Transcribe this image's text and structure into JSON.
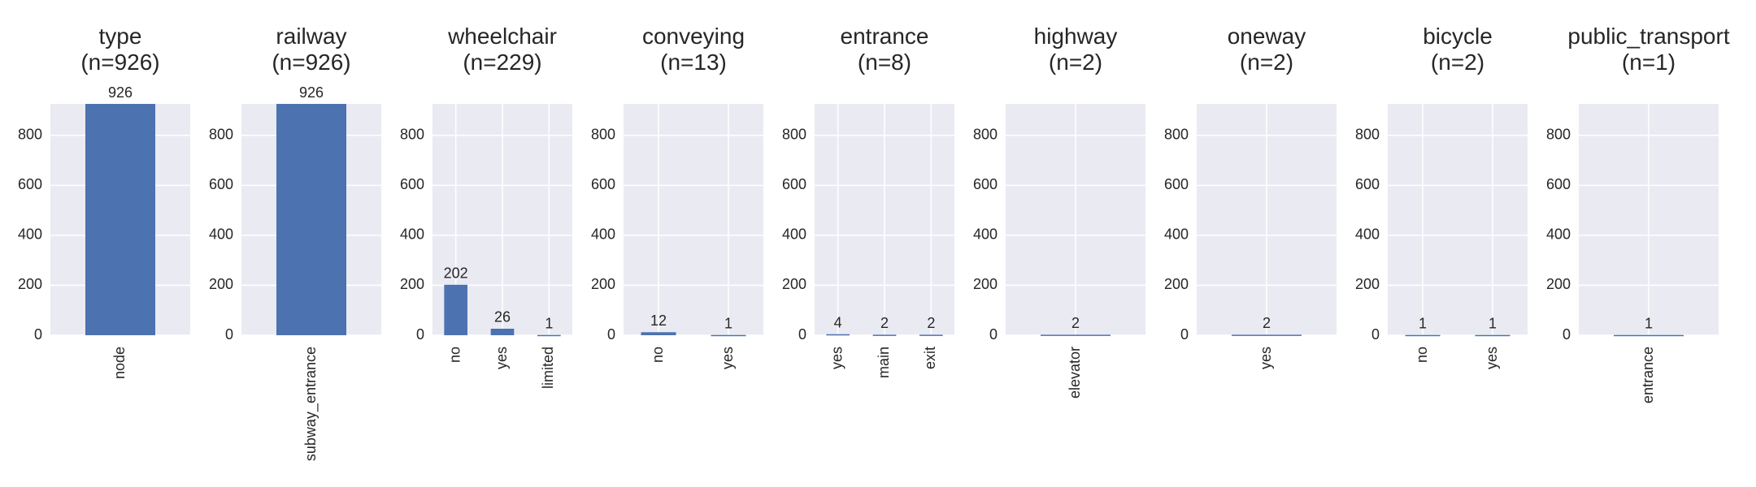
{
  "chart_data": [
    {
      "type": "bar",
      "title": "type\n(n=926)",
      "categories": [
        "node"
      ],
      "values": [
        926
      ],
      "color": "#4c72b0",
      "ylim": [
        0,
        926
      ],
      "yticks": [
        0,
        200,
        400,
        600,
        800
      ],
      "grid": true
    },
    {
      "type": "bar",
      "title": "railway\n(n=926)",
      "categories": [
        "subway_entrance"
      ],
      "values": [
        926
      ],
      "color": "#4c72b0",
      "ylim": [
        0,
        926
      ],
      "yticks": [
        0,
        200,
        400,
        600,
        800
      ],
      "grid": true
    },
    {
      "type": "bar",
      "title": "wheelchair\n(n=229)",
      "categories": [
        "no",
        "yes",
        "limited"
      ],
      "values": [
        202,
        26,
        1
      ],
      "color": "#4c72b0",
      "ylim": [
        0,
        926
      ],
      "yticks": [
        0,
        200,
        400,
        600,
        800
      ],
      "grid": true
    },
    {
      "type": "bar",
      "title": "conveying\n(n=13)",
      "categories": [
        "no",
        "yes"
      ],
      "values": [
        12,
        1
      ],
      "color": "#4c72b0",
      "ylim": [
        0,
        926
      ],
      "yticks": [
        0,
        200,
        400,
        600,
        800
      ],
      "grid": true
    },
    {
      "type": "bar",
      "title": "entrance\n(n=8)",
      "categories": [
        "yes",
        "main",
        "exit"
      ],
      "values": [
        4,
        2,
        2
      ],
      "color": "#4c72b0",
      "ylim": [
        0,
        926
      ],
      "yticks": [
        0,
        200,
        400,
        600,
        800
      ],
      "grid": true
    },
    {
      "type": "bar",
      "title": "highway\n(n=2)",
      "categories": [
        "elevator"
      ],
      "values": [
        2
      ],
      "color": "#4c72b0",
      "ylim": [
        0,
        926
      ],
      "yticks": [
        0,
        200,
        400,
        600,
        800
      ],
      "grid": true
    },
    {
      "type": "bar",
      "title": "oneway\n(n=2)",
      "categories": [
        "yes"
      ],
      "values": [
        2
      ],
      "color": "#4c72b0",
      "ylim": [
        0,
        926
      ],
      "yticks": [
        0,
        200,
        400,
        600,
        800
      ],
      "grid": true
    },
    {
      "type": "bar",
      "title": "bicycle\n(n=2)",
      "categories": [
        "no",
        "yes"
      ],
      "values": [
        1,
        1
      ],
      "color": "#4c72b0",
      "ylim": [
        0,
        926
      ],
      "yticks": [
        0,
        200,
        400,
        600,
        800
      ],
      "grid": true
    },
    {
      "type": "bar",
      "title": "public_transport\n(n=1)",
      "categories": [
        "entrance"
      ],
      "values": [
        1
      ],
      "color": "#4c72b0",
      "ylim": [
        0,
        926
      ],
      "yticks": [
        0,
        200,
        400,
        600,
        800
      ],
      "grid": true
    }
  ]
}
